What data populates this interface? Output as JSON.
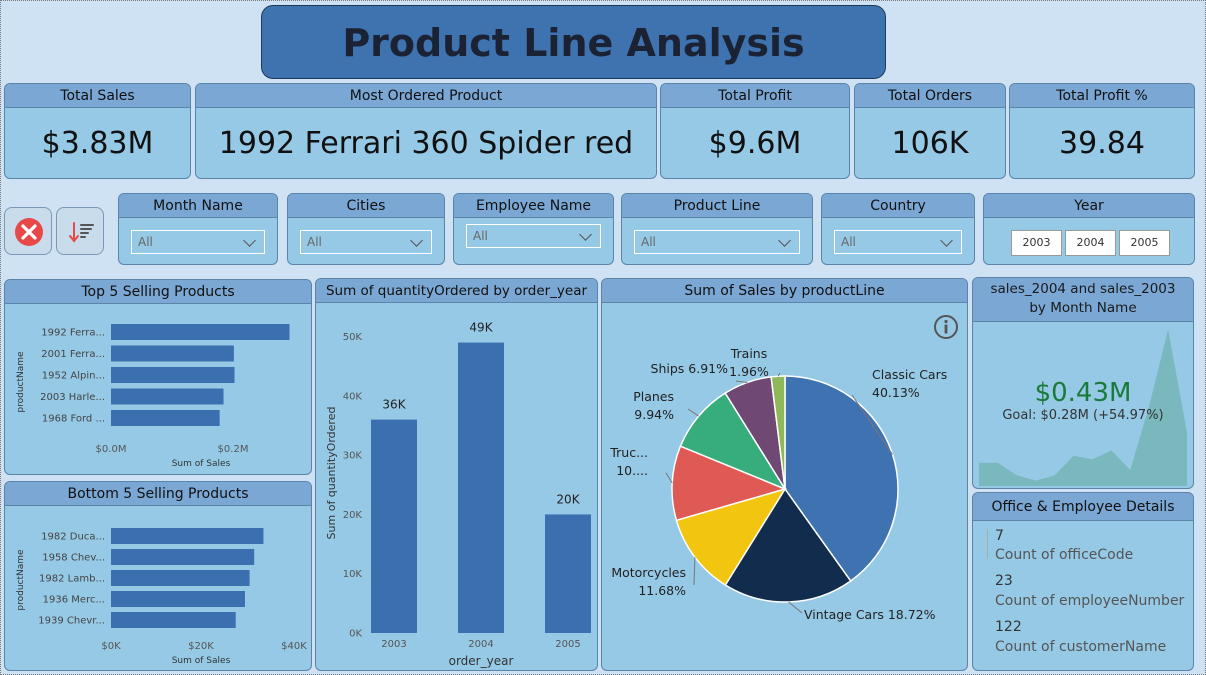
{
  "title": "Product Line Analysis",
  "kpis": {
    "total_sales": {
      "label": "Total Sales",
      "value": "$3.83M"
    },
    "most_ordered": {
      "label": "Most Ordered Product",
      "value": "1992 Ferrari 360 Spider red"
    },
    "total_profit": {
      "label": "Total Profit",
      "value": "$9.6M"
    },
    "total_orders": {
      "label": "Total Orders",
      "value": "106K"
    },
    "total_profit_pct": {
      "label": "Total Profit %",
      "value": "39.84"
    }
  },
  "slicers": {
    "month": {
      "label": "Month Name",
      "value": "All"
    },
    "cities": {
      "label": "Cities",
      "value": "All"
    },
    "employee": {
      "label": "Employee Name",
      "value": "All"
    },
    "product_line": {
      "label": "Product Line",
      "value": "All"
    },
    "country": {
      "label": "Country",
      "value": "All"
    },
    "year": {
      "label": "Year",
      "options": [
        "2003",
        "2004",
        "2005"
      ]
    }
  },
  "icons": {
    "clear": "close-circle-icon",
    "sort": "sort-descending-icon"
  },
  "colors": {
    "accent": "#3f73b0",
    "panel": "#96c9e6",
    "header": "#7aa7d4",
    "bar": "#3a6fb0",
    "kpi_green": "#1a7a3a"
  },
  "top5": {
    "title": "Top 5 Selling Products",
    "ylabel": "productName",
    "xlabel": "Sum of Sales",
    "ticks": [
      "$0.0M",
      "$0.2M"
    ]
  },
  "bottom5": {
    "title": "Bottom 5 Selling Products",
    "ylabel": "productName",
    "xlabel": "Sum of Sales",
    "ticks": [
      "$0K",
      "$20K",
      "$40K"
    ]
  },
  "qty_chart": {
    "title": "Sum of quantityOrdered by order_year"
  },
  "pie_chart": {
    "title": "Sum of Sales by productLine",
    "info_icon": "info-icon"
  },
  "kpi_card": {
    "title_line1": "sales_2004 and sales_2003",
    "title_line2": "by Month Name",
    "value": "$0.43M",
    "goal": "Goal: $0.28M (+54.97%)"
  },
  "office": {
    "title": "Office & Employee Details",
    "items": [
      {
        "value": "7",
        "label": "Count of officeCode"
      },
      {
        "value": "23",
        "label": "Count of employeeNumber"
      },
      {
        "value": "122",
        "label": "Count of customerName"
      }
    ]
  },
  "chart_data": [
    {
      "type": "bar",
      "orientation": "horizontal",
      "title": "Top 5 Selling Products",
      "categories": [
        "1992 Ferra...",
        "2001 Ferra...",
        "1952 Alpin...",
        "2003 Harle...",
        "1968 Ford ..."
      ],
      "values": [
        276000,
        190000,
        191000,
        174000,
        168000
      ],
      "xlabel": "Sum of Sales",
      "ylabel": "productName",
      "xlim": [
        0,
        300000
      ]
    },
    {
      "type": "bar",
      "orientation": "horizontal",
      "title": "Bottom 5 Selling Products",
      "categories": [
        "1982 Duca...",
        "1958 Chev...",
        "1982 Lamb...",
        "1936 Merc...",
        "1939 Chevr..."
      ],
      "values": [
        33000,
        31000,
        30000,
        29000,
        27000
      ],
      "xlabel": "Sum of Sales",
      "ylabel": "productName",
      "xlim": [
        0,
        42000
      ]
    },
    {
      "type": "bar",
      "title": "Sum of quantityOrdered by order_year",
      "categories": [
        "2003",
        "2004",
        "2005"
      ],
      "values": [
        36000,
        49000,
        20000
      ],
      "data_labels": [
        "36K",
        "49K",
        "20K"
      ],
      "xlabel": "order_year",
      "ylabel": "Sum of quantityOrdered",
      "ylim": [
        0,
        55000
      ],
      "yticks": [
        "0K",
        "10K",
        "20K",
        "30K",
        "40K",
        "50K"
      ]
    },
    {
      "type": "pie",
      "title": "Sum of Sales by productLine",
      "slices": [
        {
          "name": "Classic Cars",
          "pct": 40.13,
          "label": "40.13%",
          "color": "#3f72b0"
        },
        {
          "name": "Vintage Cars",
          "pct": 18.72,
          "label": "18.72%",
          "color": "#112c4d"
        },
        {
          "name": "Motorcycles",
          "pct": 11.68,
          "label": "11.68%",
          "color": "#f2c511"
        },
        {
          "name": "Truc...",
          "pct": 10.66,
          "label": "10....",
          "color": "#e05a55"
        },
        {
          "name": "Planes",
          "pct": 9.94,
          "label": "9.94%",
          "color": "#36ad7b"
        },
        {
          "name": "Ships",
          "pct": 6.91,
          "label": "6.91%",
          "color": "#6f4873"
        },
        {
          "name": "Trains",
          "pct": 1.96,
          "label": "1.96%",
          "color": "#8fb85a"
        }
      ]
    },
    {
      "type": "area",
      "title": "sales_2004 and sales_2003 by Month Name",
      "values": [
        0.13,
        0.13,
        0.06,
        0.03,
        0.06,
        0.17,
        0.15,
        0.2,
        0.09,
        0.45,
        0.88,
        0.3
      ]
    }
  ]
}
